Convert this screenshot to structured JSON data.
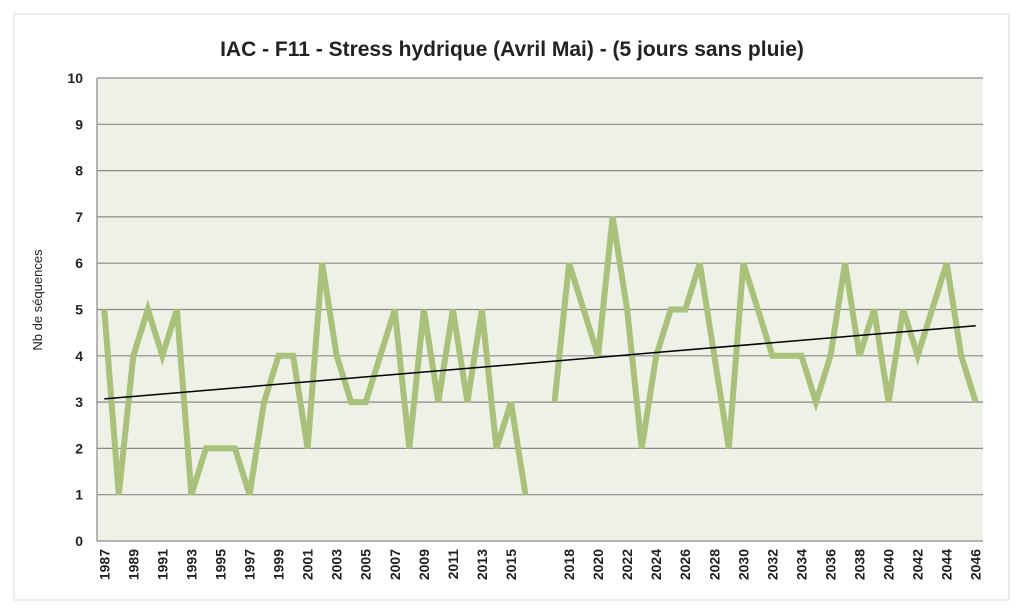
{
  "chart_data": {
    "type": "line",
    "title": "IAC - F11 - Stress hydrique (Avril Mai) - (5 jours sans pluie)",
    "y_label": "Nb de séquences",
    "categories": [
      "1987",
      null,
      "1989",
      null,
      "1991",
      null,
      "1993",
      null,
      "1995",
      null,
      "1997",
      null,
      "1999",
      null,
      "2001",
      null,
      "2003",
      null,
      "2005",
      null,
      "2007",
      null,
      "2009",
      null,
      "2011",
      null,
      "2013",
      null,
      "2015",
      null,
      null,
      null,
      "2018",
      null,
      "2020",
      null,
      "2022",
      null,
      "2024",
      null,
      "2026",
      null,
      "2028",
      null,
      "2030",
      null,
      "2032",
      null,
      "2034",
      null,
      "2036",
      null,
      "2038",
      null,
      "2040",
      null,
      "2042",
      null,
      "2044",
      null,
      "2046"
    ],
    "series": [
      {
        "color": "#a9c17a",
        "values": [
          5,
          1,
          4,
          5,
          4,
          5,
          1,
          2,
          2,
          2,
          1,
          3,
          4,
          4,
          2,
          6,
          4,
          3,
          3,
          4,
          5,
          2,
          5,
          3,
          5,
          3,
          5,
          2,
          3,
          1,
          null,
          3,
          6,
          5,
          4,
          7,
          5,
          2,
          4,
          5,
          5,
          6,
          4,
          2,
          6,
          5,
          4,
          4,
          4,
          3,
          4,
          6,
          4,
          5,
          3,
          5,
          4,
          5,
          6,
          4,
          3
        ]
      }
    ],
    "trendline": {
      "color": "#000000",
      "start": 3.07,
      "end": 4.65
    },
    "ylim": [
      0,
      10
    ],
    "yticks": [
      0,
      1,
      2,
      3,
      4,
      5,
      6,
      7,
      8,
      9,
      10
    ],
    "grid": true
  }
}
